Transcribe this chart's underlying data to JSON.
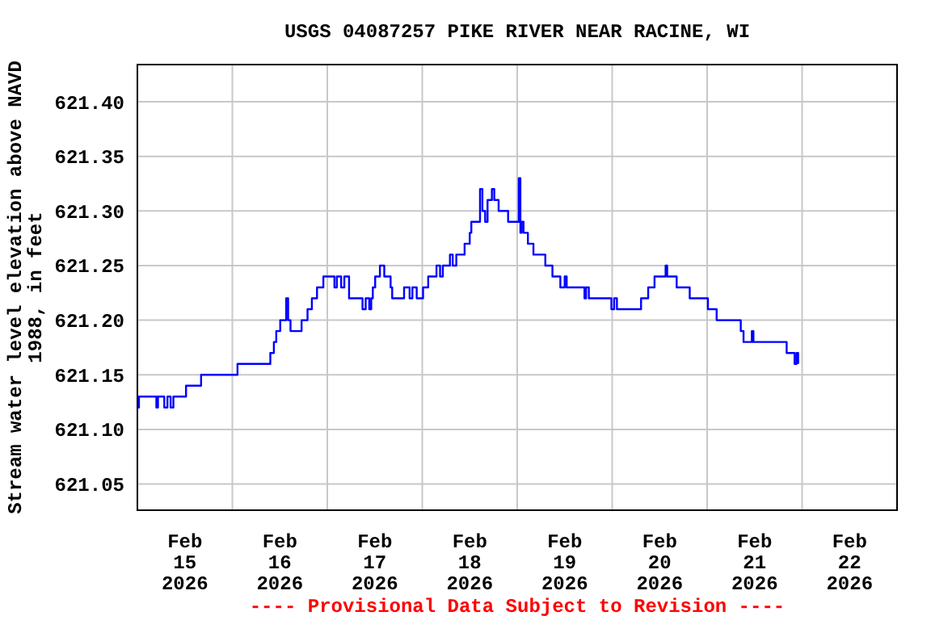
{
  "chart_data": {
    "type": "step",
    "title": "USGS 04087257 PIKE RIVER NEAR RACINE, WI",
    "ylabel": "Stream water level elevation above NAVD 1988, in feet",
    "annotations": [
      "---- Provisional Data Subject to Revision ----"
    ],
    "x": [
      "2026-02-15T00:00",
      "2026-02-15T00:24",
      "2026-02-15T04:48",
      "2026-02-15T05:12",
      "2026-02-15T06:48",
      "2026-02-15T07:36",
      "2026-02-15T08:24",
      "2026-02-15T09:06",
      "2026-02-15T12:18",
      "2026-02-15T16:06",
      "2026-02-16T01:18",
      "2026-02-16T09:36",
      "2026-02-16T10:30",
      "2026-02-16T11:06",
      "2026-02-16T12:06",
      "2026-02-16T13:36",
      "2026-02-16T14:06",
      "2026-02-16T14:42",
      "2026-02-16T17:30",
      "2026-02-16T19:00",
      "2026-02-16T20:06",
      "2026-02-16T21:24",
      "2026-02-16T23:00",
      "2026-02-17T01:48",
      "2026-02-17T02:24",
      "2026-02-17T03:30",
      "2026-02-17T04:18",
      "2026-02-17T05:30",
      "2026-02-17T08:54",
      "2026-02-17T09:42",
      "2026-02-17T10:36",
      "2026-02-17T11:06",
      "2026-02-17T11:30",
      "2026-02-17T12:06",
      "2026-02-17T13:18",
      "2026-02-17T14:24",
      "2026-02-17T16:00",
      "2026-02-17T16:24",
      "2026-02-17T19:24",
      "2026-02-17T20:48",
      "2026-02-17T21:30",
      "2026-02-17T22:36",
      "2026-02-18T00:12",
      "2026-02-18T01:30",
      "2026-02-18T03:36",
      "2026-02-18T04:30",
      "2026-02-18T05:12",
      "2026-02-18T07:00",
      "2026-02-18T07:42",
      "2026-02-18T08:36",
      "2026-02-18T10:42",
      "2026-02-18T12:00",
      "2026-02-18T12:24",
      "2026-02-18T14:36",
      "2026-02-18T15:12",
      "2026-02-18T15:54",
      "2026-02-18T16:30",
      "2026-02-18T17:36",
      "2026-02-18T18:12",
      "2026-02-18T19:18",
      "2026-02-18T21:42",
      "2026-02-19T00:24",
      "2026-02-19T00:48",
      "2026-02-19T01:06",
      "2026-02-19T01:36",
      "2026-02-19T02:42",
      "2026-02-19T04:06",
      "2026-02-19T07:06",
      "2026-02-19T08:54",
      "2026-02-19T10:54",
      "2026-02-19T12:00",
      "2026-02-19T12:30",
      "2026-02-19T17:00",
      "2026-02-19T17:24",
      "2026-02-19T18:06",
      "2026-02-19T23:48",
      "2026-02-20T00:30",
      "2026-02-20T01:12",
      "2026-02-20T07:18",
      "2026-02-20T09:06",
      "2026-02-20T10:42",
      "2026-02-20T13:30",
      "2026-02-20T13:54",
      "2026-02-20T16:18",
      "2026-02-20T19:36",
      "2026-02-21T00:12",
      "2026-02-21T02:24",
      "2026-02-21T08:30",
      "2026-02-21T09:12",
      "2026-02-21T11:18",
      "2026-02-21T11:42",
      "2026-02-21T20:06",
      "2026-02-21T22:06",
      "2026-02-21T22:36",
      "2026-02-21T23:00"
    ],
    "series": [
      {
        "color": "#0000ff",
        "values": [
          621.12,
          621.13,
          621.12,
          621.13,
          621.12,
          621.13,
          621.12,
          621.13,
          621.14,
          621.15,
          621.16,
          621.17,
          621.18,
          621.19,
          621.2,
          621.22,
          621.2,
          621.19,
          621.2,
          621.21,
          621.22,
          621.23,
          621.24,
          621.23,
          621.24,
          621.23,
          621.24,
          621.22,
          621.21,
          621.22,
          621.21,
          621.22,
          621.23,
          621.24,
          621.25,
          621.24,
          621.23,
          621.22,
          621.23,
          621.22,
          621.23,
          621.22,
          621.23,
          621.24,
          621.25,
          621.24,
          621.25,
          621.26,
          621.25,
          621.26,
          621.27,
          621.28,
          621.29,
          621.32,
          621.3,
          621.29,
          621.31,
          621.32,
          621.31,
          621.3,
          621.29,
          621.33,
          621.28,
          621.29,
          621.28,
          621.27,
          621.26,
          621.25,
          621.24,
          621.23,
          621.24,
          621.23,
          621.22,
          621.23,
          621.22,
          621.21,
          621.22,
          621.21,
          621.22,
          621.23,
          621.24,
          621.25,
          621.24,
          621.23,
          621.22,
          621.21,
          621.2,
          621.19,
          621.18,
          621.19,
          621.18,
          621.17,
          621.16,
          621.17,
          621.16
        ]
      }
    ],
    "xlim": [
      "2026-02-15",
      "2026-02-23"
    ],
    "xticks": [
      {
        "value": "2026-02-15",
        "label": null
      },
      {
        "value": "2026-02-15T12:00",
        "label": "Feb\n15\n2026"
      },
      {
        "value": "2026-02-16",
        "label": null
      },
      {
        "value": "2026-02-16T12:00",
        "label": "Feb\n16\n2026"
      },
      {
        "value": "2026-02-17",
        "label": null
      },
      {
        "value": "2026-02-17T12:00",
        "label": "Feb\n17\n2026"
      },
      {
        "value": "2026-02-18",
        "label": null
      },
      {
        "value": "2026-02-18T12:00",
        "label": "Feb\n18\n2026"
      },
      {
        "value": "2026-02-19",
        "label": null
      },
      {
        "value": "2026-02-19T12:00",
        "label": "Feb\n19\n2026"
      },
      {
        "value": "2026-02-20",
        "label": null
      },
      {
        "value": "2026-02-20T12:00",
        "label": "Feb\n20\n2026"
      },
      {
        "value": "2026-02-21",
        "label": null
      },
      {
        "value": "2026-02-21T12:00",
        "label": "Feb\n21\n2026"
      },
      {
        "value": "2026-02-22",
        "label": null
      },
      {
        "value": "2026-02-22T12:00",
        "label": "Feb\n22\n2026"
      },
      {
        "value": "2026-02-23",
        "label": null
      }
    ],
    "ylim": [
      621.026,
      621.434
    ],
    "yticks": [
      {
        "value": 621.05,
        "label": "621.05"
      },
      {
        "value": 621.1,
        "label": "621.10"
      },
      {
        "value": 621.15,
        "label": "621.15"
      },
      {
        "value": 621.2,
        "label": "621.20"
      },
      {
        "value": 621.25,
        "label": "621.25"
      },
      {
        "value": 621.3,
        "label": "621.30"
      },
      {
        "value": 621.35,
        "label": "621.35"
      },
      {
        "value": 621.4,
        "label": "621.40"
      }
    ],
    "grid": true,
    "legend": false
  }
}
